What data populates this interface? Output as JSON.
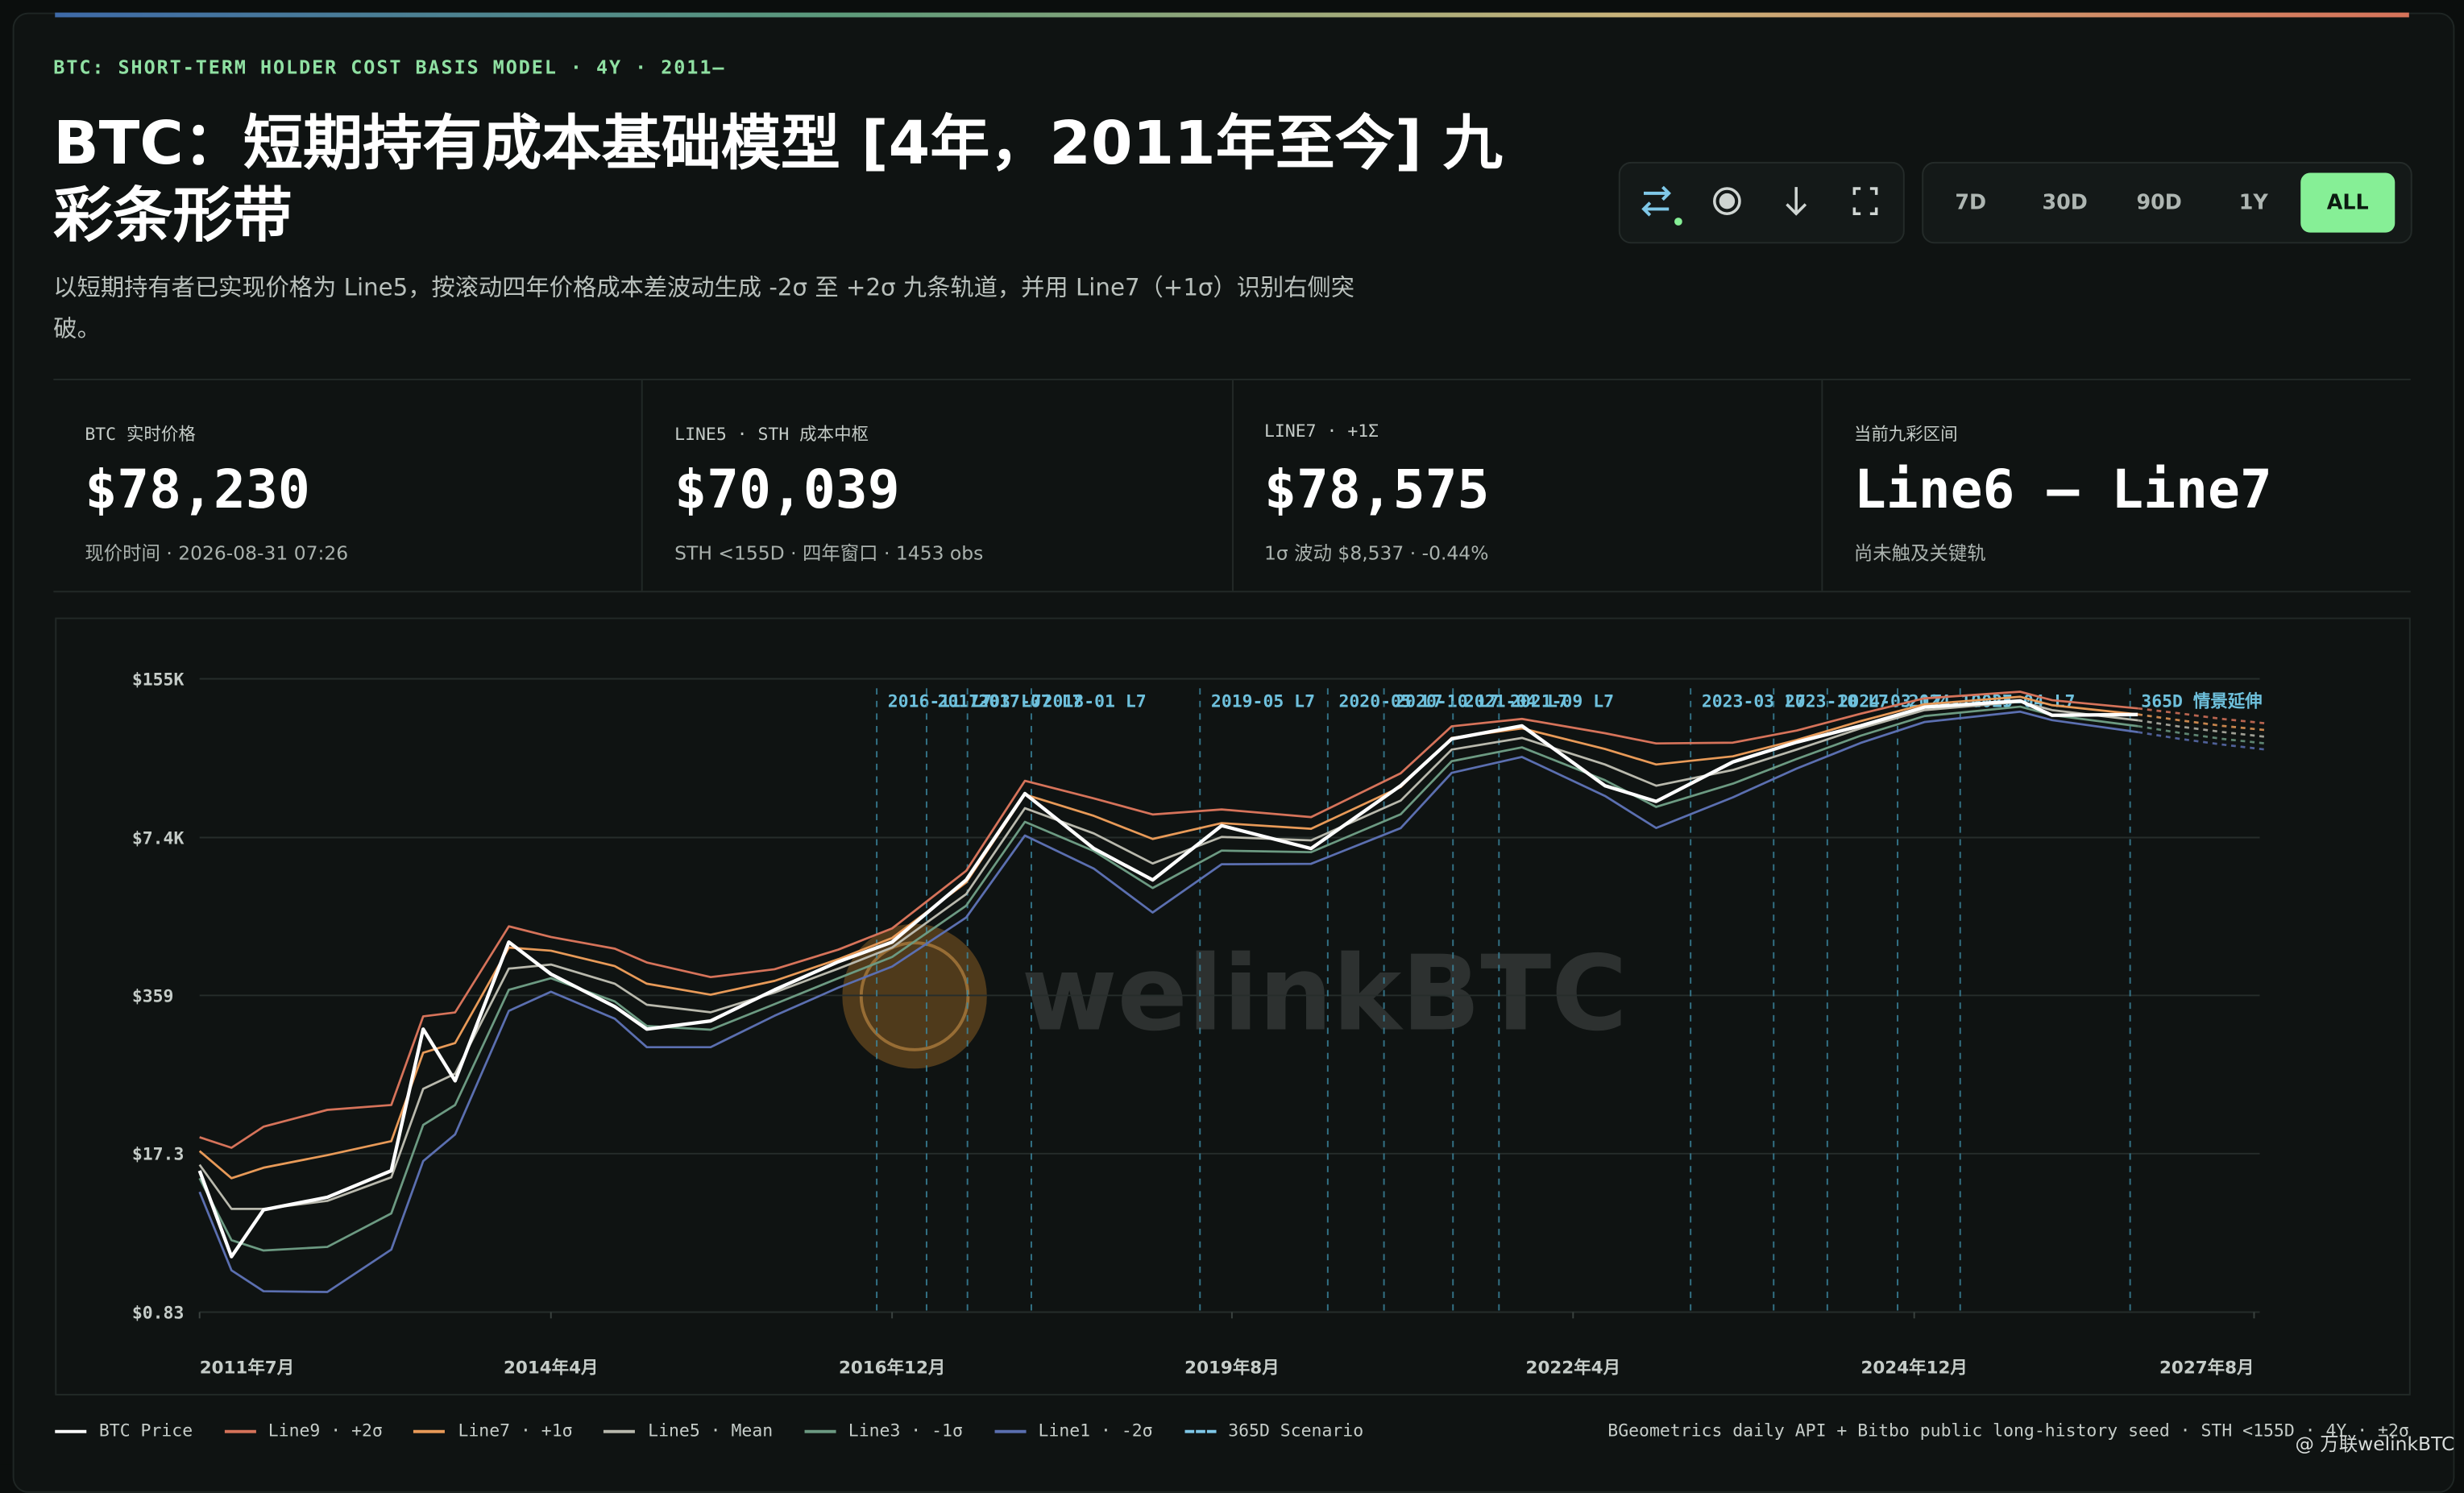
{
  "header": {
    "tag": "BTC: SHORT-TERM HOLDER COST BASIS MODEL · 4Y · 2011—",
    "title": "BTC：短期持有成本基础模型 [4年，2011年至今] 九彩条形带",
    "subtitle": "以短期持有者已实现价格为 Line5，按滚动四年价格成本差波动生成 -2σ 至 +2σ 九条轨道，并用 Line7（+1σ）识别右侧突破。"
  },
  "controls": {
    "ranges": [
      "7D",
      "30D",
      "90D",
      "1Y",
      "ALL"
    ],
    "active": "ALL"
  },
  "stats": [
    {
      "label": "BTC 实时价格",
      "value": "$78,230",
      "sub": "现价时间 · 2026-08-31 07:26"
    },
    {
      "label": "LINE5 · STH 成本中枢",
      "value": "$70,039",
      "sub": "STH <155D · 四年窗口 · 1453 obs"
    },
    {
      "label": "LINE7 · +1Σ",
      "value": "$78,575",
      "sub": "1σ 波动 $8,537 · -0.44%"
    },
    {
      "label": "当前九彩区间",
      "value": "Line6 — Line7",
      "sub": "尚未触及关键轨"
    }
  ],
  "chart_data": {
    "type": "line",
    "log_y": true,
    "grid": true,
    "xlim": [
      2011.5,
      2027.6
    ],
    "ylim": [
      0.83,
      155000
    ],
    "yticks": [
      {
        "value": 155000,
        "label": "$155K"
      },
      {
        "value": 7400,
        "label": "$7.4K"
      },
      {
        "value": 359,
        "label": "$359"
      },
      {
        "value": 17.3,
        "label": "$17.3"
      },
      {
        "value": 0.83,
        "label": "$0.83"
      }
    ],
    "xticks": [
      {
        "value": 2011.5,
        "label": "2011年7月"
      },
      {
        "value": 2014.25,
        "label": "2014年4月"
      },
      {
        "value": 2016.92,
        "label": "2016年12月"
      },
      {
        "value": 2019.58,
        "label": "2019年8月"
      },
      {
        "value": 2022.25,
        "label": "2022年4月"
      },
      {
        "value": 2024.92,
        "label": "2024年12月"
      },
      {
        "value": 2027.58,
        "label": "2027年8月"
      }
    ],
    "x": [
      2011.5,
      2011.75,
      2012.0,
      2012.5,
      2013.0,
      2013.25,
      2013.5,
      2013.92,
      2014.25,
      2014.75,
      2015.0,
      2015.5,
      2016.0,
      2016.5,
      2016.92,
      2017.5,
      2017.96,
      2018.5,
      2018.96,
      2019.5,
      2020.2,
      2020.9,
      2021.3,
      2021.85,
      2022.5,
      2022.9,
      2023.5,
      2024.0,
      2024.5,
      2025.0,
      2025.75,
      2026.0,
      2026.67
    ],
    "series": [
      {
        "name": "Line1 · -2σ",
        "color": "#5b6fb0",
        "values": [
          8.3,
          1.85,
          1.24,
          1.22,
          2.75,
          15,
          25,
          267,
          385,
          230,
          133,
          133,
          243,
          417,
          625,
          1600,
          7690,
          4082,
          1758,
          4438,
          4480,
          8876,
          25600,
          34720,
          16460,
          8890,
          15980,
          27780,
          45370,
          67760,
          82640,
          70250,
          55830
        ]
      },
      {
        "name": "Line3 · -1σ",
        "color": "#6c9a82",
        "values": [
          10.8,
          3.3,
          2.7,
          2.9,
          5.5,
          30,
          44,
          400,
          500,
          320,
          200,
          186,
          304,
          500,
          750,
          2000,
          10000,
          5714,
          2812,
          5770,
          5600,
          11540,
          32000,
          41670,
          22220,
          13330,
          20770,
          33330,
          52170,
          75890,
          90910,
          77270,
          62530
        ]
      },
      {
        "name": "Line5 · Mean",
        "color": "#b9b9ad",
        "values": [
          14,
          6,
          6,
          7,
          11,
          60,
          80,
          600,
          650,
          450,
          300,
          260,
          380,
          600,
          900,
          2500,
          13000,
          8000,
          4500,
          7500,
          7000,
          15000,
          40000,
          50000,
          30000,
          20000,
          27000,
          40000,
          60000,
          85000,
          100000,
          85000,
          70039
        ]
      },
      {
        "name": "Line7 · +1σ",
        "color": "#e89a58",
        "values": [
          18.2,
          10.8,
          13.2,
          16.8,
          22,
          120,
          144,
          900,
          845,
          630,
          450,
          364,
          475,
          720,
          1080,
          3125,
          16900,
          11200,
          7200,
          9750,
          8750,
          19500,
          50000,
          60000,
          40500,
          30000,
          35100,
          48000,
          69000,
          95200,
          110000,
          93500,
          78575
        ]
      },
      {
        "name": "Line9 · +2σ",
        "color": "#d6735a",
        "values": [
          23.7,
          19.4,
          29,
          40,
          44,
          240,
          259,
          1350,
          1100,
          880,
          675,
          510,
          594,
          864,
          1296,
          3906,
          21970,
          15680,
          11520,
          12675,
          10940,
          25350,
          62500,
          72000,
          54680,
          45000,
          45630,
          57600,
          79350,
          106600,
          121000,
          102850,
          87860
        ]
      },
      {
        "name": "BTC Price",
        "color": "#ffffff",
        "values": [
          12.5,
          2.4,
          5.9,
          7.5,
          12.5,
          188,
          70,
          1000,
          540,
          290,
          188,
          220,
          400,
          685,
          1000,
          3280,
          17200,
          6000,
          3280,
          9300,
          6000,
          20000,
          49000,
          63000,
          20000,
          14800,
          31500,
          46000,
          63000,
          90000,
          101600,
          77000,
          78230
        ]
      }
    ],
    "scenario": {
      "name": "365D Scenario",
      "color": "#7fc8e8",
      "x": [
        2026.67,
        2027.0,
        2027.33,
        2027.67
      ],
      "values": [
        [
          55830,
          49000,
          44000,
          40000
        ],
        [
          62530,
          55000,
          49000,
          45000
        ],
        [
          70039,
          62000,
          56000,
          51000
        ],
        [
          78575,
          70000,
          63000,
          58000
        ],
        [
          87860,
          80000,
          72000,
          66000
        ]
      ]
    },
    "annotations": [
      {
        "x": 2016.8,
        "label": "2016-11 L7"
      },
      {
        "x": 2017.19,
        "label": "2017-03 L7"
      },
      {
        "x": 2017.51,
        "label": "2017-07 L7"
      },
      {
        "x": 2018.01,
        "label": "2018-01 L7"
      },
      {
        "x": 2019.33,
        "label": "2019-05 L7"
      },
      {
        "x": 2020.33,
        "label": "2020-05 L7"
      },
      {
        "x": 2020.77,
        "label": "2020-10 L7"
      },
      {
        "x": 2021.31,
        "label": "2021-04 L7"
      },
      {
        "x": 2021.67,
        "label": "2021-09 L7"
      },
      {
        "x": 2023.17,
        "label": "2023-03 L7"
      },
      {
        "x": 2023.82,
        "label": "2023-10 L7"
      },
      {
        "x": 2024.24,
        "label": "2024-03 L7"
      },
      {
        "x": 2024.79,
        "label": "2024-10 L7"
      },
      {
        "x": 2025.28,
        "label": "2025-04 L7"
      },
      {
        "x": 2026.61,
        "label": "365D 情景延伸"
      }
    ]
  },
  "footer": {
    "source": "BGeometrics daily API + Bitbo public long-history seed · STH <155D · 4Y · ±2σ"
  },
  "watermark": {
    "text": "welinkBTC",
    "credit": "@ 万联welinkBTC"
  }
}
